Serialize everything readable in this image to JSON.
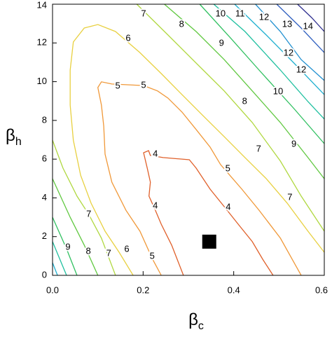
{
  "chart_data": {
    "type": "contour",
    "xlabel": [
      "β",
      "c"
    ],
    "ylabel": [
      "β",
      "h"
    ],
    "xlim": [
      0,
      0.6
    ],
    "ylim": [
      0,
      14
    ],
    "xticks": [
      {
        "value": 0,
        "label": "0.0"
      },
      0.2,
      0.4,
      0.6
    ],
    "yticks": [
      0,
      2,
      4,
      6,
      8,
      10,
      12,
      14
    ],
    "lines": [
      {
        "level": 4,
        "color": "#e0602a",
        "x": [
          0.289,
          0.263,
          0.24,
          0.227,
          0.213,
          0.216,
          0.209,
          0.201,
          0.212,
          0.216,
          0.244,
          0.302,
          0.317,
          0.348,
          0.379,
          0.41,
          0.441,
          0.464,
          0.487
        ],
        "y": [
          0,
          1.56,
          2.64,
          3.36,
          4.09,
          4.81,
          5.54,
          6.33,
          6.44,
          6.19,
          6.08,
          5.97,
          5.54,
          4.45,
          3.55,
          2.64,
          1.74,
          0.83,
          0
        ]
      },
      {
        "level": 5,
        "color": "#f09838",
        "x": [
          0.24,
          0.221,
          0.193,
          0.162,
          0.131,
          0.116,
          0.113,
          0.108,
          0.1,
          0.108,
          0.131,
          0.201,
          0.232,
          0.255,
          0.286,
          0.317,
          0.348,
          0.371,
          0.418,
          0.456,
          0.503,
          0.549
        ],
        "y": [
          0,
          0.83,
          2.28,
          3.36,
          4.81,
          6.26,
          7.71,
          8.79,
          9.7,
          9.99,
          9.88,
          9.8,
          9.52,
          9.15,
          8.43,
          7.53,
          6.62,
          5.72,
          4.45,
          3.36,
          1.92,
          0
        ]
      },
      {
        "level": 6,
        "color": "#e8d040",
        "x": [
          0.178,
          0.147,
          0.116,
          0.085,
          0.062,
          0.046,
          0.039,
          0.039,
          0.046,
          0.07,
          0.1,
          0.139,
          0.193,
          0.24,
          0.286,
          0.332,
          0.379,
          0.425,
          0.472,
          0.518,
          0.564,
          0.6
        ],
        "y": [
          0,
          1.19,
          2.28,
          3.73,
          5.17,
          6.98,
          8.79,
          10.6,
          12.05,
          12.77,
          12.95,
          12.59,
          11.5,
          10.42,
          9.33,
          8.25,
          7.16,
          6.08,
          4.99,
          3.73,
          2.28,
          1.19
        ]
      },
      {
        "level": 7,
        "color": "#b0d840",
        "x": [
          0.186,
          0.255,
          0.317,
          0.379,
          0.441,
          0.503,
          0.549,
          0.6
        ],
        "y": [
          14,
          12.41,
          10.96,
          9.52,
          7.89,
          5.9,
          4.09,
          2.28
        ]
      },
      {
        "level": 7,
        "color": "#b0d840",
        "x": [
          0,
          0.023,
          0.054,
          0.08,
          0.108,
          0.139
        ],
        "y": [
          6.98,
          5.54,
          4.09,
          3.15,
          1.92,
          0
        ]
      },
      {
        "level": 8,
        "color": "#60c840",
        "x": [
          0.247,
          0.317,
          0.379,
          0.441,
          0.503,
          0.564,
          0.6
        ],
        "y": [
          14,
          12.59,
          11.14,
          9.52,
          7.89,
          6.08,
          4.99
        ]
      },
      {
        "level": 8,
        "color": "#60c840",
        "x": [
          0,
          0.039,
          0.07,
          0.1
        ],
        "y": [
          4.99,
          3.0,
          1.56,
          0
        ]
      },
      {
        "level": 9,
        "color": "#30c060",
        "x": [
          0.325,
          0.394,
          0.456,
          0.533,
          0.6
        ],
        "y": [
          14,
          12.23,
          10.6,
          8.61,
          6.8
        ]
      },
      {
        "level": 9,
        "color": "#30c060",
        "x": [
          0,
          0.031,
          0.054
        ],
        "y": [
          3.0,
          1.37,
          0
        ]
      },
      {
        "level": 10,
        "color": "#20c0a0",
        "x": [
          0.356,
          0.425,
          0.503,
          0.564,
          0.6
        ],
        "y": [
          14,
          12.59,
          10.6,
          8.97,
          8.07
        ]
      },
      {
        "level": 10,
        "color": "#20c0a0",
        "x": [
          0,
          0.031
        ],
        "y": [
          1.74,
          0
        ]
      },
      {
        "level": 11,
        "color": "#20b0d0",
        "x": [
          0.402,
          0.472,
          0.533,
          0.6
        ],
        "y": [
          14,
          12.41,
          10.96,
          9.33
        ]
      },
      {
        "level": 11,
        "color": "#20b0d0",
        "x": [
          0,
          0.011
        ],
        "y": [
          0.65,
          0
        ]
      },
      {
        "level": 12,
        "color": "#2090d0",
        "x": [
          0.448,
          0.503,
          0.549,
          0.6
        ],
        "y": [
          14,
          12.59,
          11.14,
          10.06
        ]
      },
      {
        "level": 13,
        "color": "#3060c0",
        "x": [
          0.495,
          0.549,
          0.6
        ],
        "y": [
          14,
          12.77,
          11.5
        ]
      },
      {
        "level": 14,
        "color": "#303090",
        "x": [
          0.541,
          0.572,
          0.6
        ],
        "y": [
          14,
          13.31,
          12.59
        ]
      }
    ],
    "labels": [
      {
        "level": 7,
        "x": 0.201,
        "y": 13.49
      },
      {
        "level": 8,
        "x": 0.285,
        "y": 12.95
      },
      {
        "level": 6,
        "x": 0.167,
        "y": 12.23
      },
      {
        "level": 10,
        "x": 0.371,
        "y": 13.49
      },
      {
        "level": 11,
        "x": 0.414,
        "y": 13.49
      },
      {
        "level": 12,
        "x": 0.467,
        "y": 13.31
      },
      {
        "level": 13,
        "x": 0.518,
        "y": 12.95
      },
      {
        "level": 14,
        "x": 0.564,
        "y": 12.84
      },
      {
        "level": 9,
        "x": 0.373,
        "y": 11.98
      },
      {
        "level": 12,
        "x": 0.521,
        "y": 11.47
      },
      {
        "level": 12,
        "x": 0.549,
        "y": 10.6
      },
      {
        "level": 10,
        "x": 0.498,
        "y": 9.48
      },
      {
        "level": 8,
        "x": 0.424,
        "y": 8.97
      },
      {
        "level": 5,
        "x": 0.144,
        "y": 9.77
      },
      {
        "level": 5,
        "x": 0.201,
        "y": 9.8
      },
      {
        "level": 9,
        "x": 0.533,
        "y": 6.77
      },
      {
        "level": 7,
        "x": 0.455,
        "y": 6.51
      },
      {
        "level": 4,
        "x": 0.227,
        "y": 6.26
      },
      {
        "level": 5,
        "x": 0.387,
        "y": 5.5
      },
      {
        "level": 4,
        "x": 0.227,
        "y": 3.58
      },
      {
        "level": 4,
        "x": 0.388,
        "y": 3.51
      },
      {
        "level": 7,
        "x": 0.524,
        "y": 4.02
      },
      {
        "level": 7,
        "x": 0.08,
        "y": 3.15
      },
      {
        "level": 9,
        "x": 0.034,
        "y": 1.45
      },
      {
        "level": 8,
        "x": 0.079,
        "y": 1.23
      },
      {
        "level": 7,
        "x": 0.124,
        "y": 1.12
      },
      {
        "level": 6,
        "x": 0.164,
        "y": 1.34
      },
      {
        "level": 5,
        "x": 0.22,
        "y": 0.98
      }
    ],
    "marker": {
      "x": 0.346,
      "y": 1.74,
      "color": "#000000"
    }
  }
}
